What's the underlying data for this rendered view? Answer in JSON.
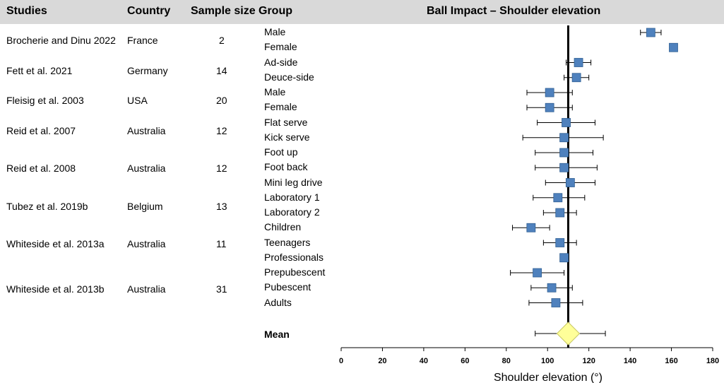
{
  "header": {
    "studies": "Studies",
    "country": "Country",
    "sample_size": "Sample size",
    "group": "Group",
    "chart_title": "Ball Impact – Shoulder elevation"
  },
  "studies": [
    {
      "name": "Brocherie and Dinu 2022",
      "country": "France",
      "n": "2"
    },
    {
      "name": "Fett et al. 2021",
      "country": "Germany",
      "n": "14"
    },
    {
      "name": "Fleisig et al. 2003",
      "country": "USA",
      "n": "20"
    },
    {
      "name": "Reid et al. 2007",
      "country": "Australia",
      "n": "12"
    },
    {
      "name": "Reid et al. 2008",
      "country": "Australia",
      "n": "12"
    },
    {
      "name": "Tubez et al. 2019b",
      "country": "Belgium",
      "n": "13"
    },
    {
      "name": "Whiteside et al. 2013a",
      "country": "Australia",
      "n": "11"
    },
    {
      "name": "Whiteside et al. 2013b",
      "country": "Australia",
      "n": "31"
    }
  ],
  "chart_data": {
    "type": "forest",
    "title": "Ball Impact – Shoulder elevation",
    "xlabel": "Shoulder elevation (°)",
    "xlim": [
      0,
      180
    ],
    "xticks": [
      0,
      20,
      40,
      60,
      80,
      100,
      120,
      140,
      160,
      180
    ],
    "reference_line": 110,
    "groups": [
      {
        "label": "Male",
        "mean": 150,
        "lo": 145,
        "hi": 155
      },
      {
        "label": "Female",
        "mean": 161,
        "lo": null,
        "hi": null
      },
      {
        "label": "Ad-side",
        "mean": 115,
        "lo": 109,
        "hi": 121
      },
      {
        "label": "Deuce-side",
        "mean": 114,
        "lo": 108,
        "hi": 120
      },
      {
        "label": "Male",
        "mean": 101,
        "lo": 90,
        "hi": 112
      },
      {
        "label": "Female",
        "mean": 101,
        "lo": 90,
        "hi": 112
      },
      {
        "label": "Flat serve",
        "mean": 109,
        "lo": 95,
        "hi": 123
      },
      {
        "label": "Kick serve",
        "mean": 108,
        "lo": 88,
        "hi": 127
      },
      {
        "label": "Foot up",
        "mean": 108,
        "lo": 94,
        "hi": 122
      },
      {
        "label": "Foot back",
        "mean": 108,
        "lo": 94,
        "hi": 124
      },
      {
        "label": "Mini leg drive",
        "mean": 111,
        "lo": 99,
        "hi": 123
      },
      {
        "label": "Laboratory 1",
        "mean": 105,
        "lo": 93,
        "hi": 118
      },
      {
        "label": "Laboratory 2",
        "mean": 106,
        "lo": 98,
        "hi": 114
      },
      {
        "label": "Children",
        "mean": 92,
        "lo": 83,
        "hi": 101
      },
      {
        "label": "Teenagers",
        "mean": 106,
        "lo": 98,
        "hi": 114
      },
      {
        "label": "Professionals",
        "mean": 108,
        "lo": null,
        "hi": null
      },
      {
        "label": "Prepubescent",
        "mean": 95,
        "lo": 82,
        "hi": 108
      },
      {
        "label": "Pubescent",
        "mean": 102,
        "lo": 92,
        "hi": 112
      },
      {
        "label": "Adults",
        "mean": 104,
        "lo": 91,
        "hi": 117
      }
    ],
    "pooled": {
      "label": "Mean",
      "mean": 110,
      "lo": 94,
      "hi": 128
    }
  },
  "colors": {
    "marker": "#4f81bd",
    "marker_edge": "#2f5f93",
    "diamond": "#ffff99",
    "diamond_edge": "#c8c864",
    "header_bg": "#d9d9d9"
  }
}
